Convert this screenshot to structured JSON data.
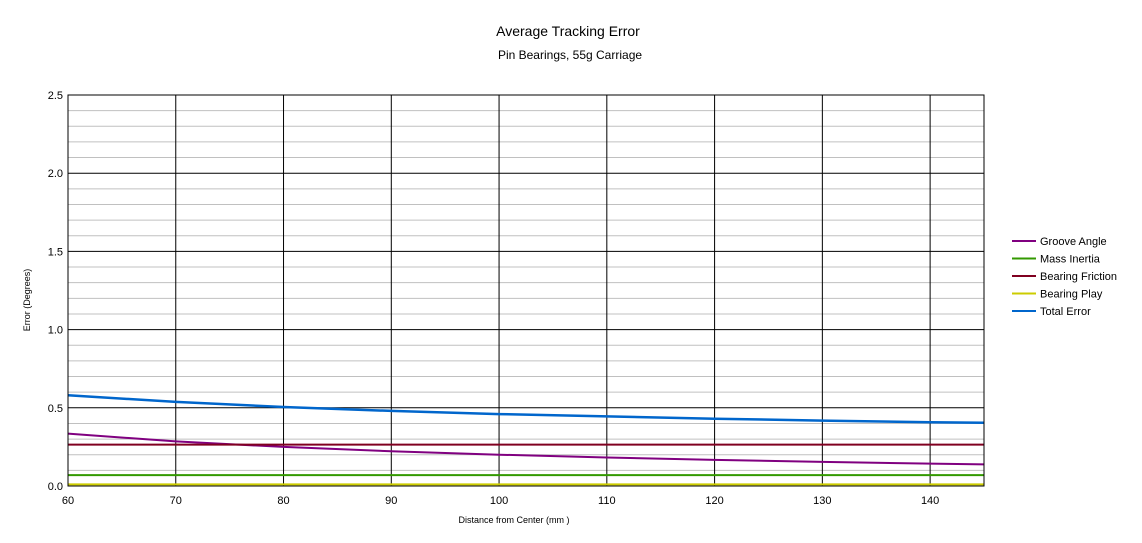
{
  "chart_data": {
    "type": "line",
    "title": "Average Tracking Error",
    "subtitle": "Pin Bearings, 55g Carriage",
    "xlabel": "Distance from Center (mm )",
    "ylabel": "Error (Degrees)",
    "xlim": [
      60,
      145
    ],
    "ylim": [
      0,
      2.5
    ],
    "x_ticks": [
      "60",
      "70",
      "80",
      "90",
      "100",
      "110",
      "120",
      "130",
      "140"
    ],
    "y_ticks": [
      "0.0",
      "0.5",
      "1.0",
      "1.5",
      "2.0",
      "2.5"
    ],
    "grid": true,
    "legend_position": "right",
    "x": [
      60,
      70,
      80,
      90,
      100,
      110,
      120,
      130,
      140,
      145
    ],
    "series": [
      {
        "name": "Groove Angle",
        "color": "#800080",
        "values": [
          0.335,
          0.285,
          0.25,
          0.222,
          0.2,
          0.182,
          0.167,
          0.154,
          0.143,
          0.138
        ]
      },
      {
        "name": "Mass Inertia",
        "color": "#339900",
        "values": [
          0.07,
          0.07,
          0.07,
          0.07,
          0.07,
          0.07,
          0.07,
          0.07,
          0.07,
          0.07
        ]
      },
      {
        "name": "Bearing Friction",
        "color": "#800020",
        "values": [
          0.265,
          0.265,
          0.265,
          0.265,
          0.265,
          0.265,
          0.265,
          0.265,
          0.265,
          0.265
        ]
      },
      {
        "name": "Bearing Play",
        "color": "#cccc00",
        "values": [
          0.01,
          0.01,
          0.01,
          0.01,
          0.01,
          0.01,
          0.01,
          0.01,
          0.01,
          0.01
        ]
      },
      {
        "name": "Total Error",
        "color": "#0066cc",
        "values": [
          0.58,
          0.538,
          0.505,
          0.48,
          0.46,
          0.445,
          0.43,
          0.418,
          0.408,
          0.404
        ]
      }
    ]
  }
}
